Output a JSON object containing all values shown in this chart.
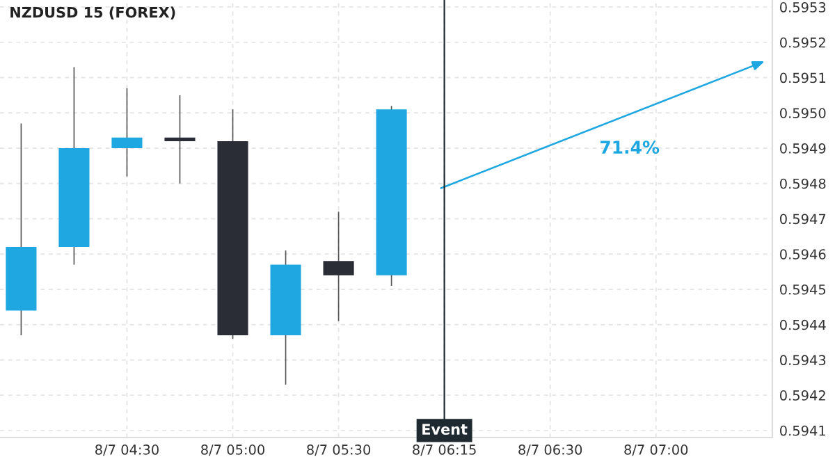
{
  "chart_data": {
    "type": "candlestick",
    "title": "NZDUSD 15 (FOREX)",
    "categories": [
      null,
      null,
      "8/7 04:30",
      null,
      "8/7 05:00",
      null,
      "8/7 05:30",
      null,
      "8/7 06:15",
      null,
      "8/7 06:30",
      null,
      "8/7 07:00",
      null,
      null
    ],
    "ohlc": [
      [
        0.59444,
        0.59497,
        0.59437,
        0.59462
      ],
      [
        0.59462,
        0.59513,
        0.59457,
        0.5949
      ],
      [
        0.5949,
        0.59507,
        0.59482,
        0.59493
      ],
      [
        0.59493,
        0.59505,
        0.5948,
        0.59492
      ],
      [
        0.59492,
        0.59501,
        0.59436,
        0.59437
      ],
      [
        0.59437,
        0.59461,
        0.59423,
        0.59457
      ],
      [
        0.59458,
        0.59472,
        0.59441,
        0.59454
      ],
      [
        0.59454,
        0.59502,
        0.59451,
        0.59501
      ],
      null,
      null,
      null,
      null,
      null,
      null,
      null
    ],
    "colors": [
      "#1ea7e1",
      "#1ea7e1",
      "#1ea7e1",
      "#2a2d36",
      "#2a2d36",
      "#1ea7e1",
      "#2a2d36",
      "#1ea7e1",
      null,
      null,
      null,
      null,
      null,
      null,
      null
    ],
    "annotations": [
      "71.4%"
    ],
    "ref_lines": [
      {
        "axis": "x",
        "value": "8/7 06:15",
        "label": "Event",
        "color": "#1f2a30"
      }
    ],
    "ylim": [
      0.59408,
      0.59532
    ],
    "yticks": [
      {
        "value": 0.5941,
        "label": "0.5941"
      },
      {
        "value": 0.5942,
        "label": "0.5942"
      },
      {
        "value": 0.5943,
        "label": "0.5943"
      },
      {
        "value": 0.5944,
        "label": "0.5944"
      },
      {
        "value": 0.5945,
        "label": "0.5945"
      },
      {
        "value": 0.5946,
        "label": "0.5946"
      },
      {
        "value": 0.5947,
        "label": "0.5947"
      },
      {
        "value": 0.5948,
        "label": "0.5948"
      },
      {
        "value": 0.5949,
        "label": "0.5949"
      },
      {
        "value": 0.595,
        "label": "0.5950"
      },
      {
        "value": 0.5951,
        "label": "0.5951"
      },
      {
        "value": 0.5952,
        "label": "0.5952"
      },
      {
        "value": 0.5953,
        "label": "0.5953"
      }
    ],
    "grid": true
  }
}
